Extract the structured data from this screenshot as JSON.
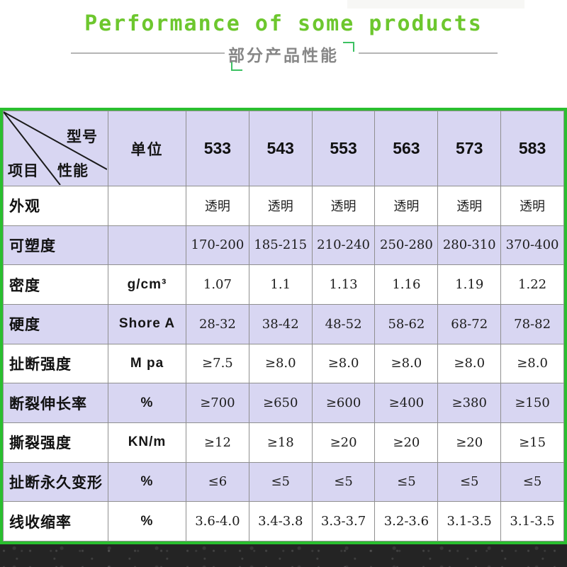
{
  "header": {
    "title": "Performance of some products",
    "subtitle": "部分产品性能"
  },
  "colors": {
    "title_green": "#6dc72e",
    "bracket_green": "#3cc162",
    "table_border_green": "#2abf2f",
    "row_lavender": "#d8d6f2",
    "subtitle_gray": "#878787",
    "grid_line_gray": "#8f8f8f",
    "bottom_band_dark": "#242424"
  },
  "table": {
    "corner": {
      "top_right": "型号",
      "bottom_left": "项目",
      "middle": "性能"
    },
    "unit_header": "单位",
    "models": [
      "533",
      "543",
      "553",
      "563",
      "573",
      "583"
    ],
    "rows": [
      {
        "label": "外观",
        "unit": "",
        "values": [
          "透明",
          "透明",
          "透明",
          "透明",
          "透明",
          "透明"
        ]
      },
      {
        "label": "可塑度",
        "unit": "",
        "values": [
          "170-200",
          "185-215",
          "210-240",
          "250-280",
          "280-310",
          "370-400"
        ]
      },
      {
        "label": "密度",
        "unit": "g/cm³",
        "values": [
          "1.07",
          "1.1",
          "1.13",
          "1.16",
          "1.19",
          "1.22"
        ]
      },
      {
        "label": "硬度",
        "unit": "Shore A",
        "values": [
          "28-32",
          "38-42",
          "48-52",
          "58-62",
          "68-72",
          "78-82"
        ]
      },
      {
        "label": "扯断强度",
        "unit": "M pa",
        "values": [
          "≥7.5",
          "≥8.0",
          "≥8.0",
          "≥8.0",
          "≥8.0",
          "≥8.0"
        ]
      },
      {
        "label": "断裂伸长率",
        "unit": "%",
        "values": [
          "≥700",
          "≥650",
          "≥600",
          "≥400",
          "≥380",
          "≥150"
        ]
      },
      {
        "label": "撕裂强度",
        "unit": "KN/m",
        "values": [
          "≥12",
          "≥18",
          "≥20",
          "≥20",
          "≥20",
          "≥15"
        ]
      },
      {
        "label": "扯断永久变形",
        "unit": "%",
        "values": [
          "≤6",
          "≤5",
          "≤5",
          "≤5",
          "≤5",
          "≤5"
        ]
      },
      {
        "label": "线收缩率",
        "unit": "%",
        "values": [
          "3.6-4.0",
          "3.4-3.8",
          "3.3-3.7",
          "3.2-3.6",
          "3.1-3.5",
          "3.1-3.5"
        ]
      }
    ]
  }
}
